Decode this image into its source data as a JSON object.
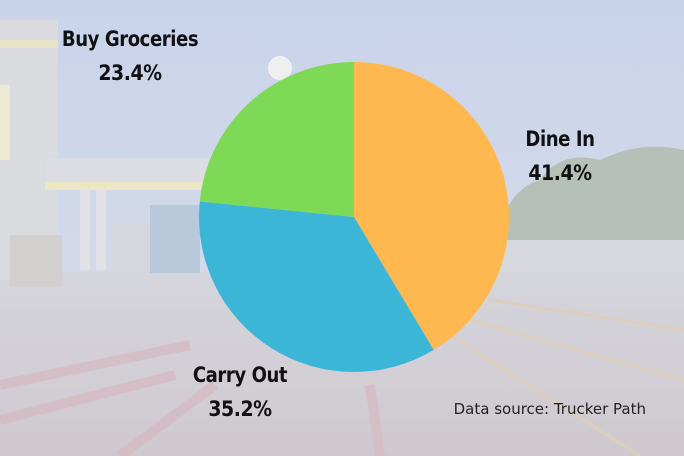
{
  "chart_data": {
    "type": "pie",
    "title": "",
    "slices": [
      {
        "label": "Dine In",
        "percent_label": "41.4%",
        "value": 41.4,
        "color": "#FFB84F"
      },
      {
        "label": "Carry Out",
        "percent_label": "35.2%",
        "value": 35.2,
        "color": "#3CB6D6"
      },
      {
        "label": "Buy Groceries",
        "percent_label": "23.4%",
        "value": 23.4,
        "color": "#7ED957"
      }
    ],
    "start": "12 o'clock",
    "direction": "clockwise",
    "legend": "none"
  },
  "source": "Data source: Trucker Path",
  "background": "faded photo of a truck stop fuel station at dusk"
}
